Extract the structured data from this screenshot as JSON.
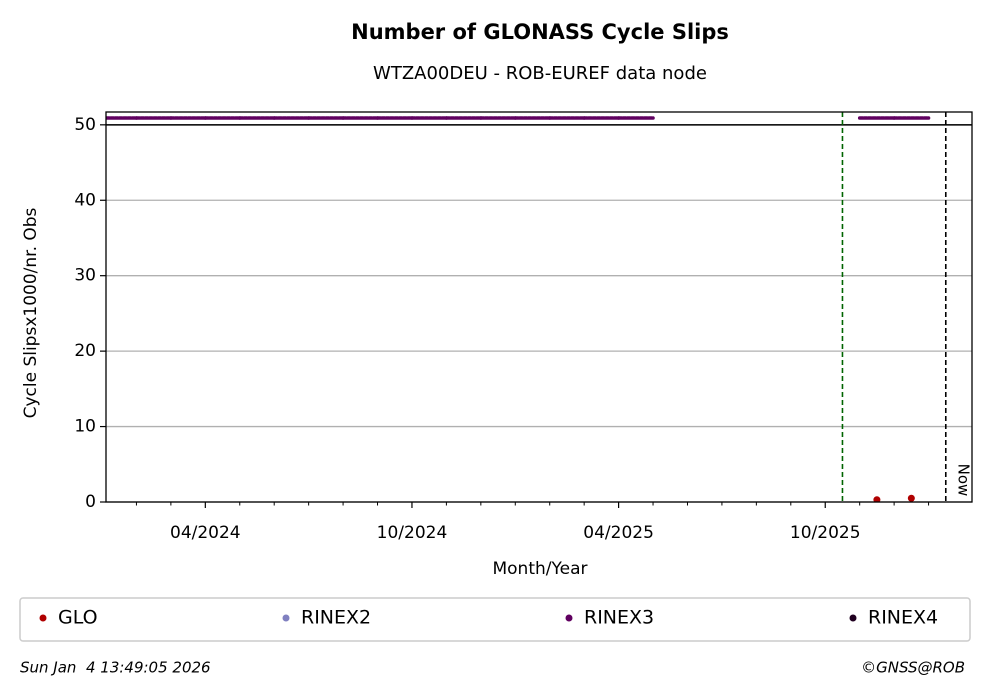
{
  "chart_data": {
    "type": "scatter",
    "title": "Number of GLONASS Cycle Slips",
    "subtitle": "WTZA00DEU - ROB-EUREF data node",
    "x_label": "Month/Year",
    "y_label": "Cycle Slipsx1000/nr. Obs",
    "xlim": [
      "2024-01",
      "2026-02"
    ],
    "xticks": [
      {
        "value": "2024-04",
        "label": "04/2024"
      },
      {
        "value": "2024-10",
        "label": "10/2024"
      },
      {
        "value": "2025-04",
        "label": "04/2025"
      },
      {
        "value": "2025-10",
        "label": "10/2025"
      }
    ],
    "xticks_minor": [
      "2024-02",
      "2024-03",
      "2024-05",
      "2024-06",
      "2024-07",
      "2024-08",
      "2024-09",
      "2024-11",
      "2024-12",
      "2025-01",
      "2025-02",
      "2025-03",
      "2025-05",
      "2025-06",
      "2025-07",
      "2025-08",
      "2025-09",
      "2025-11",
      "2025-12",
      "2026-01"
    ],
    "ylim": [
      0,
      51.7
    ],
    "yticks": [
      0,
      10,
      20,
      30,
      40,
      50
    ],
    "grid": true,
    "hline": 50,
    "vlines": [
      {
        "x": "2025-10",
        "color": "#006400"
      },
      {
        "x": "2026-01",
        "color": "#000000",
        "label": "Now"
      }
    ],
    "series": [
      {
        "name": "GLO",
        "color": "#b00000",
        "x": [
          "2025-11",
          "2025-12"
        ],
        "values": [
          0.3,
          0.5
        ]
      },
      {
        "name": "RINEX2",
        "color": "#8080c0",
        "x": [],
        "values": []
      },
      {
        "name": "RINEX3",
        "color": "#600060",
        "x": [
          "2024-01",
          "2024-02",
          "2024-03",
          "2024-04",
          "2024-05",
          "2024-06",
          "2024-07",
          "2024-08",
          "2024-09",
          "2024-10",
          "2024-11",
          "2024-12",
          "2025-01",
          "2025-02",
          "2025-03",
          "2025-04",
          "2025-11",
          "2025-12"
        ],
        "values": [
          50.9,
          50.9,
          50.9,
          50.9,
          50.9,
          50.9,
          50.9,
          50.9,
          50.9,
          50.9,
          50.9,
          50.9,
          50.9,
          50.9,
          50.9,
          50.9,
          50.9,
          50.9
        ]
      },
      {
        "name": "RINEX4",
        "color": "#200020",
        "x": [],
        "values": []
      }
    ],
    "timestamp": "Sun Jan  4 13:49:05 2026",
    "credit": "©GNSS@ROB"
  }
}
